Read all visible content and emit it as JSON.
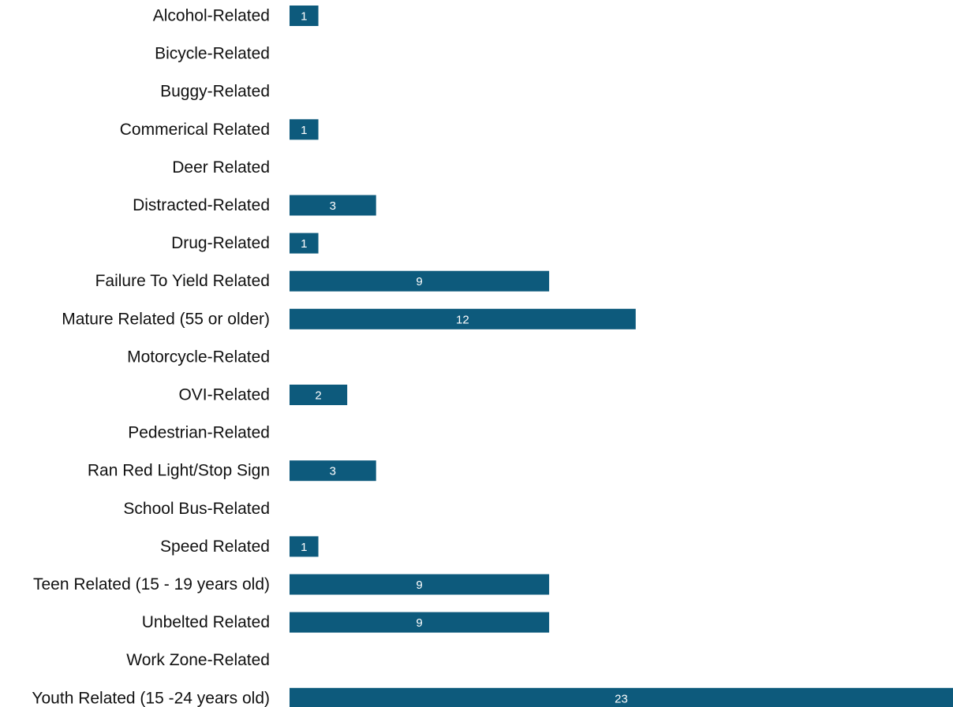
{
  "chart_data": {
    "type": "bar",
    "orientation": "horizontal",
    "categories": [
      "Alcohol-Related",
      "Bicycle-Related",
      "Buggy-Related",
      "Commerical Related",
      "Deer Related",
      "Distracted-Related",
      "Drug-Related",
      "Failure To Yield Related",
      "Mature Related (55 or older)",
      "Motorcycle-Related",
      "OVI-Related",
      "Pedestrian-Related",
      "Ran Red Light/Stop Sign",
      "School Bus-Related",
      "Speed Related",
      "Teen Related (15 - 19 years old)",
      "Unbelted Related",
      "Work Zone-Related",
      "Youth Related (15 -24 years old)"
    ],
    "values": [
      1,
      null,
      null,
      1,
      null,
      3,
      1,
      9,
      12,
      null,
      2,
      null,
      3,
      null,
      1,
      9,
      9,
      null,
      23
    ],
    "data_labels": true,
    "title": "",
    "xlabel": "",
    "ylabel": "",
    "xlim": [
      0,
      23
    ],
    "grid": false,
    "legend": "none",
    "colors": {
      "bar": "#0d5a7c",
      "value_label": "#ffffff",
      "category_label": "#111111",
      "background": "#ffffff"
    }
  }
}
